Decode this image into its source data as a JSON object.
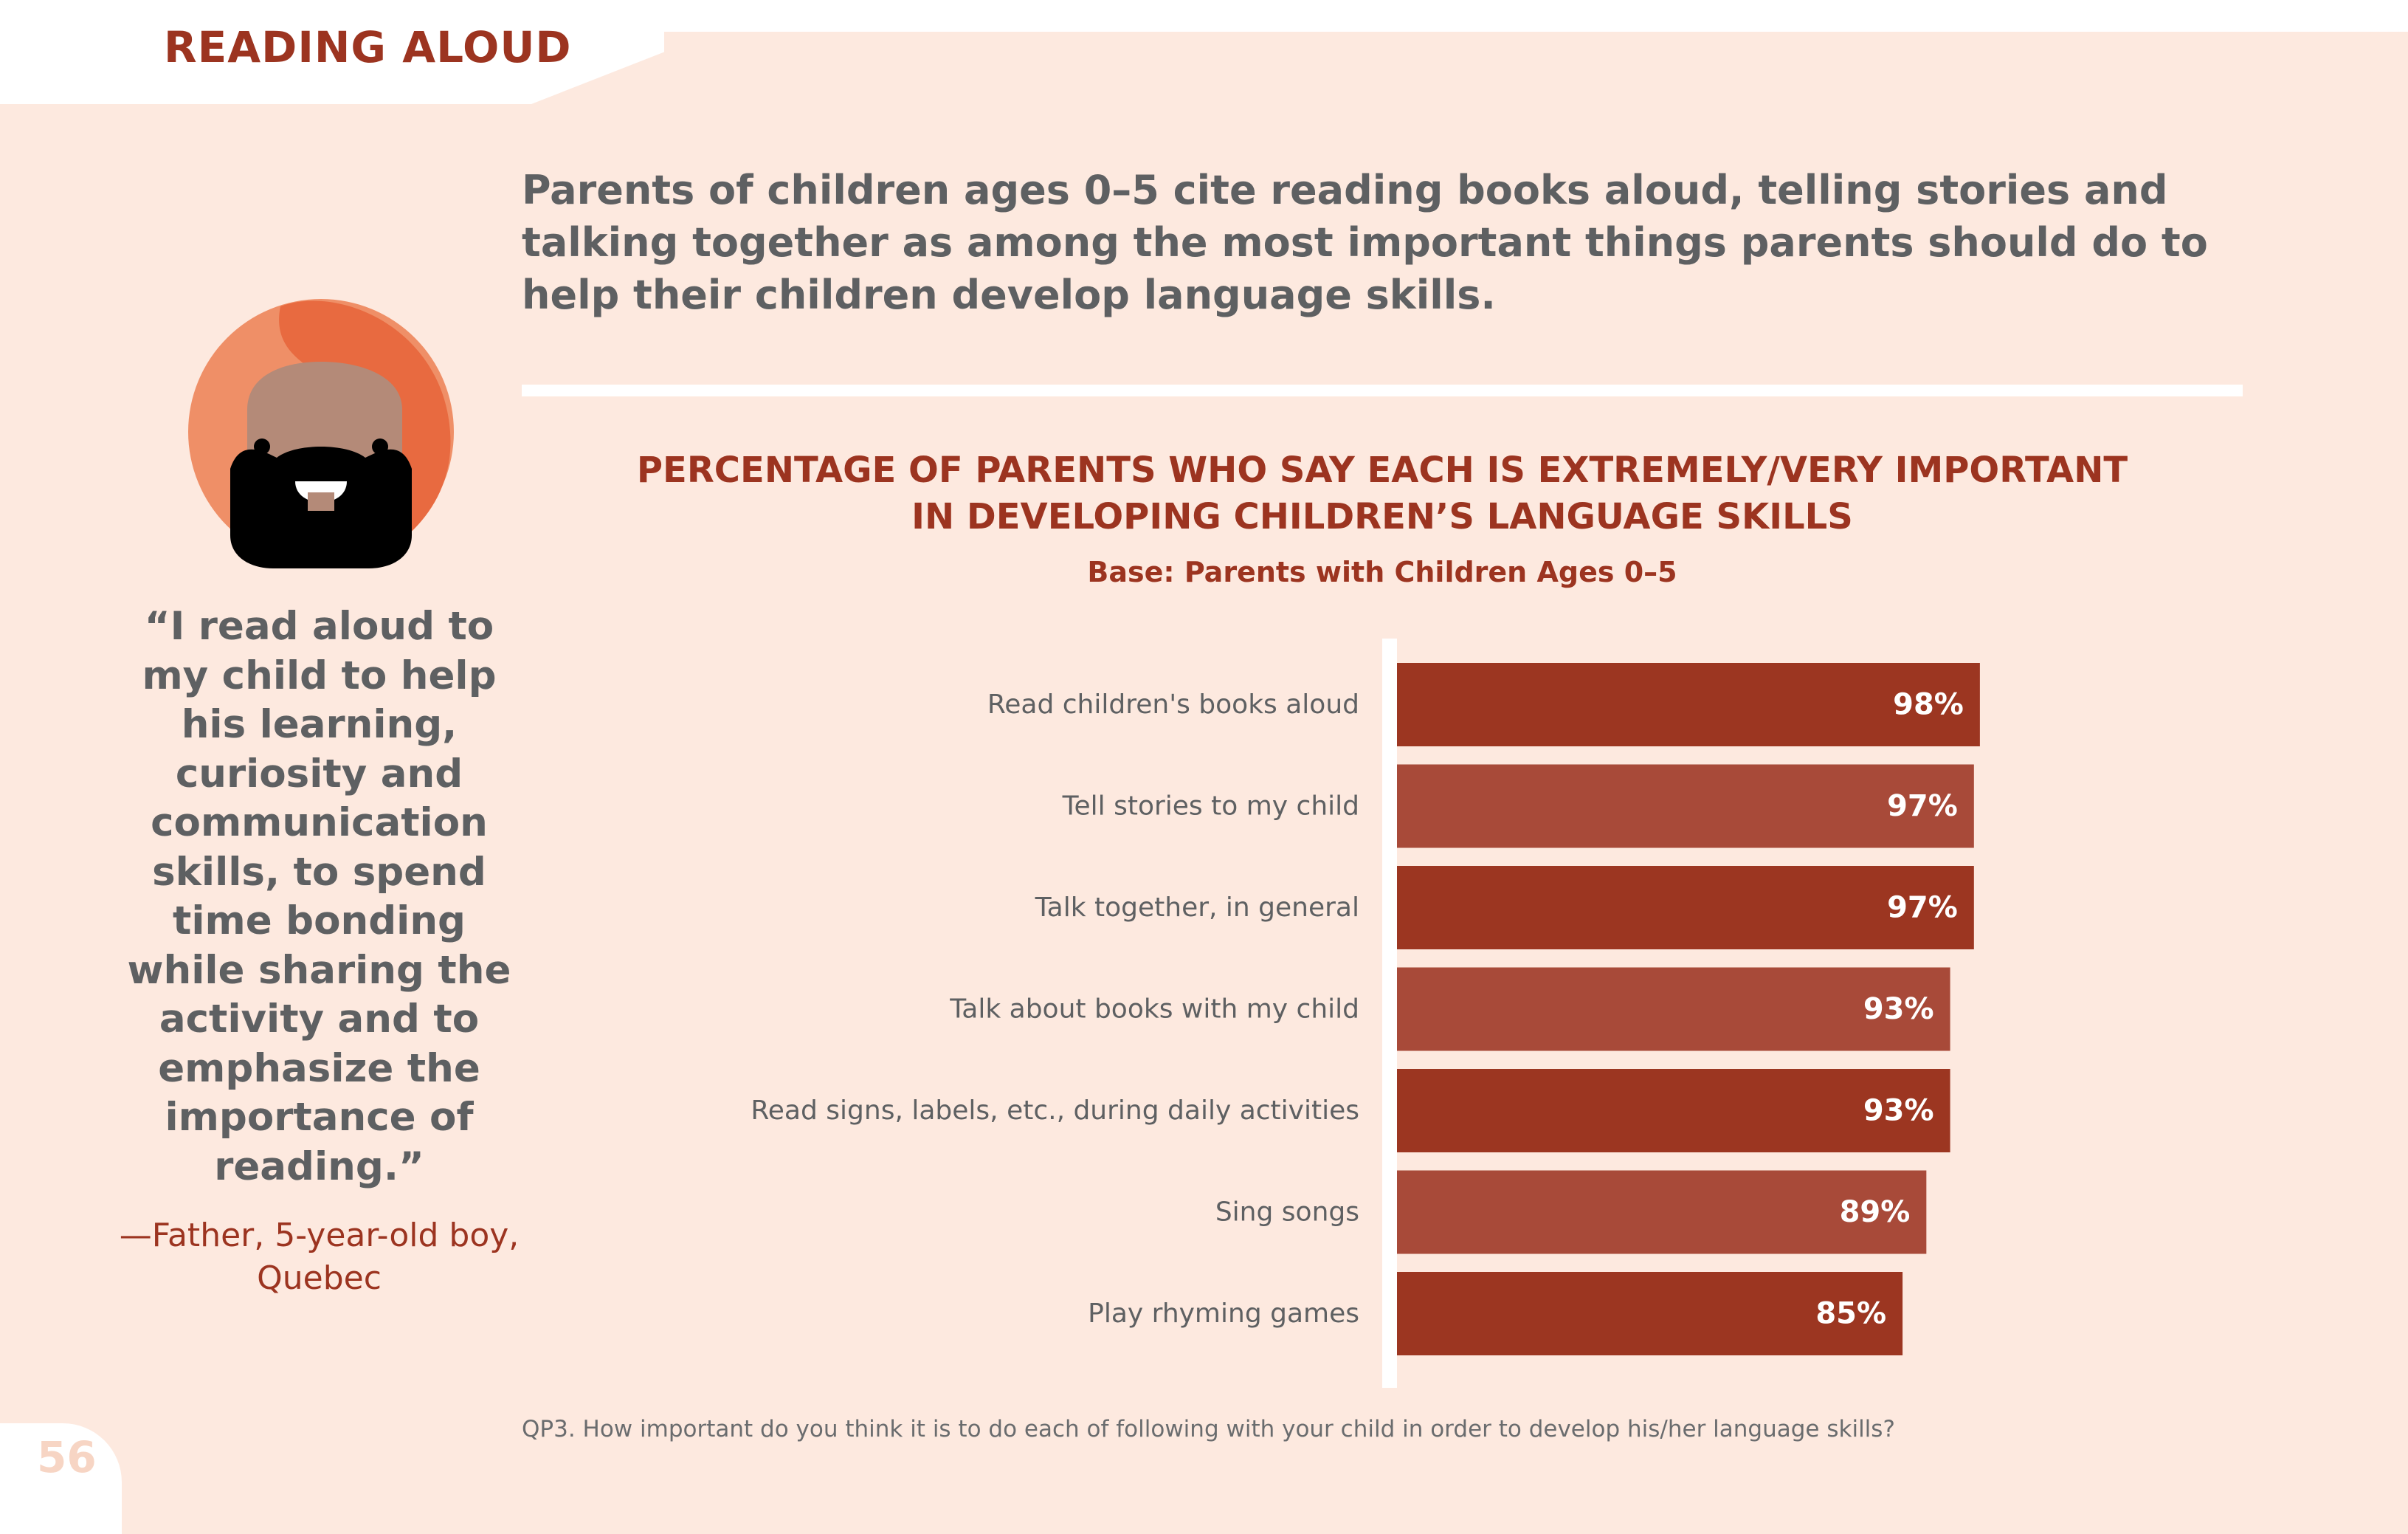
{
  "header": {
    "section_title": "READING ALOUD"
  },
  "intro_text": "Parents of children ages 0–5 cite reading books aloud, telling stories and talking together as among the most important things parents should do to help their children develop language skills.",
  "quote": {
    "text": "“I read aloud to my child to help his learning, curiosity and communication skills, to spend time bonding while sharing the activity and to emphasize the importance of reading.”",
    "attribution": "—Father, 5-year-old boy, Quebec"
  },
  "chart_data": {
    "type": "bar",
    "orientation": "horizontal",
    "title_line1": "PERCENTAGE OF PARENTS WHO SAY EACH IS EXTREMELY/VERY IMPORTANT",
    "title_line2": "IN DEVELOPING CHILDREN’S LANGUAGE SKILLS",
    "subtitle": "Base: Parents with Children Ages 0–5",
    "categories": [
      "Read children's books aloud",
      "Tell stories to my child",
      "Talk together, in general",
      "Talk about books with my child",
      "Read signs, labels, etc., during daily activities",
      "Sing songs",
      "Play rhyming games"
    ],
    "values": [
      98,
      97,
      97,
      93,
      93,
      89,
      85
    ],
    "value_labels": [
      "98%",
      "97%",
      "97%",
      "93%",
      "93%",
      "89%",
      "85%"
    ],
    "xlim": [
      0,
      100
    ],
    "grid": false,
    "bar_colors": [
      "#9c3621",
      "#a84a39"
    ]
  },
  "footnote": "QP3. How important do you think it is to do each of following with your child in order to develop his/her language skills?",
  "page_number": "56"
}
